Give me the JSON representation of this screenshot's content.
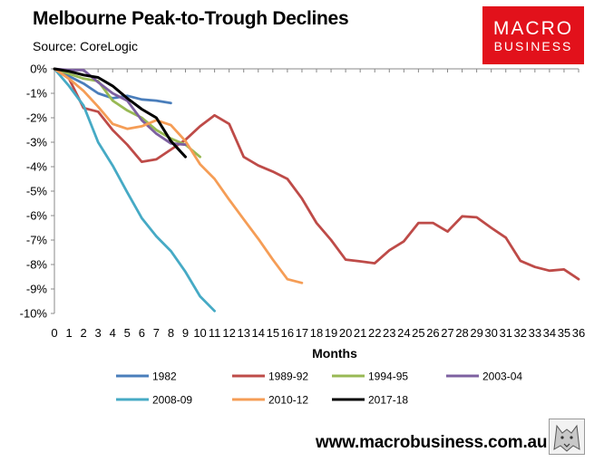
{
  "header": {
    "title": "Melbourne Peak-to-Trough Declines",
    "source": "Source: CoreLogic"
  },
  "logo": {
    "line1": "MACRO",
    "line2": "BUSINESS"
  },
  "footer": {
    "url": "www.macrobusiness.com.au"
  },
  "chart_data": {
    "type": "line",
    "title": "Melbourne Peak-to-Trough Declines",
    "xlabel": "Months",
    "ylabel": "",
    "xlim": [
      0,
      36
    ],
    "ylim": [
      -10,
      0
    ],
    "x_ticks": [
      "0",
      "1",
      "2",
      "3",
      "4",
      "5",
      "6",
      "7",
      "8",
      "9",
      "10",
      "11",
      "12",
      "13",
      "14",
      "15",
      "16",
      "17",
      "18",
      "19",
      "20",
      "21",
      "22",
      "23",
      "24",
      "25",
      "26",
      "27",
      "28",
      "29",
      "30",
      "31",
      "32",
      "33",
      "34",
      "35",
      "36"
    ],
    "y_ticks": [
      "0%",
      "-1%",
      "-2%",
      "-3%",
      "-4%",
      "-5%",
      "-6%",
      "-7%",
      "-8%",
      "-9%",
      "-10%"
    ],
    "legend_position": "bottom",
    "series": [
      {
        "name": "1982",
        "color": "#4a7ebb",
        "values": [
          0,
          -0.3,
          -0.6,
          -1.0,
          -1.2,
          -1.1,
          -1.25,
          -1.3,
          -1.4
        ]
      },
      {
        "name": "1989-92",
        "color": "#be4b48",
        "values": [
          0,
          -0.4,
          -1.6,
          -1.75,
          -2.5,
          -3.1,
          -3.8,
          -3.7,
          -3.3,
          -2.9,
          -2.35,
          -1.9,
          -2.25,
          -3.6,
          -3.95,
          -4.2,
          -4.5,
          -5.3,
          -6.3,
          -7.0,
          -7.8,
          -7.87,
          -7.95,
          -7.42,
          -7.05,
          -6.3,
          -6.3,
          -6.65,
          -6.03,
          -6.07,
          -6.5,
          -6.9,
          -7.85,
          -8.1,
          -8.25,
          -8.2,
          -8.6
        ]
      },
      {
        "name": "1994-95",
        "color": "#98b954",
        "values": [
          0,
          -0.2,
          -0.4,
          -0.5,
          -1.3,
          -1.7,
          -2.0,
          -2.5,
          -2.85,
          -3.1,
          -3.6
        ]
      },
      {
        "name": "2003-04",
        "color": "#7d60a0",
        "values": [
          0,
          -0.05,
          -0.05,
          -0.55,
          -1.0,
          -1.3,
          -2.1,
          -2.65,
          -3.05,
          -3.1
        ]
      },
      {
        "name": "2008-09",
        "color": "#46aac5",
        "values": [
          0,
          -0.7,
          -1.5,
          -3.0,
          -3.95,
          -5.05,
          -6.1,
          -6.85,
          -7.45,
          -8.3,
          -9.3,
          -9.9
        ]
      },
      {
        "name": "2010-12",
        "color": "#f59d56",
        "values": [
          0,
          -0.4,
          -0.9,
          -1.55,
          -2.25,
          -2.45,
          -2.35,
          -2.1,
          -2.3,
          -2.95,
          -3.9,
          -4.5,
          -5.35,
          -6.15,
          -6.95,
          -7.8,
          -8.6,
          -8.75
        ]
      },
      {
        "name": "2017-18",
        "color": "#000000",
        "values": [
          0,
          -0.1,
          -0.25,
          -0.35,
          -0.7,
          -1.2,
          -1.65,
          -2.0,
          -2.95,
          -3.6
        ]
      }
    ]
  }
}
